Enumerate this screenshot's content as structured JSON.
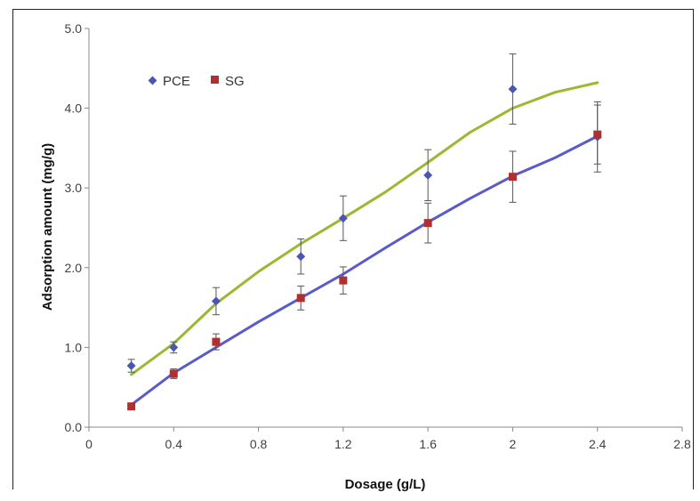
{
  "chart_data": {
    "type": "scatter",
    "xlabel": "Dosage (g/L)",
    "ylabel": "Adsorption amount (mg/g)",
    "xlim": [
      0,
      2.8
    ],
    "ylim": [
      0,
      5.0
    ],
    "x_ticks": [
      0,
      0.4,
      0.8,
      1.2,
      1.6,
      2,
      2.4,
      2.8
    ],
    "x_tick_labels": [
      "0",
      "0.4",
      "0.8",
      "1.2",
      "1.6",
      "2",
      "2.4",
      "2.8"
    ],
    "y_ticks": [
      0,
      1,
      2,
      3,
      4,
      5
    ],
    "y_tick_labels": [
      "0.0",
      "1.0",
      "2.0",
      "3.0",
      "4.0",
      "5.0"
    ],
    "grid": false,
    "legend_position": "top-left",
    "series": [
      {
        "name": "PCE",
        "marker": "diamond",
        "color": "#4a55b5",
        "x": [
          0.2,
          0.4,
          0.6,
          1.0,
          1.2,
          1.6,
          2.0,
          2.4
        ],
        "y": [
          0.77,
          1.0,
          1.58,
          2.14,
          2.62,
          3.16,
          4.24,
          3.64
        ],
        "error": [
          0.08,
          0.07,
          0.17,
          0.22,
          0.28,
          0.32,
          0.44,
          0.44
        ]
      },
      {
        "name": "SG",
        "marker": "square",
        "color": "#b03030",
        "x": [
          0.2,
          0.4,
          0.6,
          1.0,
          1.2,
          1.6,
          2.0,
          2.4
        ],
        "y": [
          0.26,
          0.67,
          1.07,
          1.62,
          1.84,
          2.56,
          3.14,
          3.67
        ],
        "error": [
          0.04,
          0.06,
          0.1,
          0.15,
          0.17,
          0.25,
          0.32,
          0.37
        ]
      }
    ],
    "fit_lines": [
      {
        "color": "#9ab831",
        "x": [
          0.2,
          0.4,
          0.6,
          0.8,
          1.0,
          1.2,
          1.4,
          1.6,
          1.8,
          2.0,
          2.2,
          2.4
        ],
        "y": [
          0.66,
          1.05,
          1.55,
          1.95,
          2.3,
          2.62,
          2.95,
          3.32,
          3.7,
          4.0,
          4.2,
          4.32
        ]
      },
      {
        "color": "#5a5ac8",
        "x": [
          0.2,
          0.4,
          0.6,
          0.8,
          1.0,
          1.2,
          1.4,
          1.6,
          1.8,
          2.0,
          2.2,
          2.4
        ],
        "y": [
          0.28,
          0.68,
          1.0,
          1.32,
          1.62,
          1.92,
          2.25,
          2.57,
          2.87,
          3.15,
          3.38,
          3.65
        ]
      }
    ]
  }
}
